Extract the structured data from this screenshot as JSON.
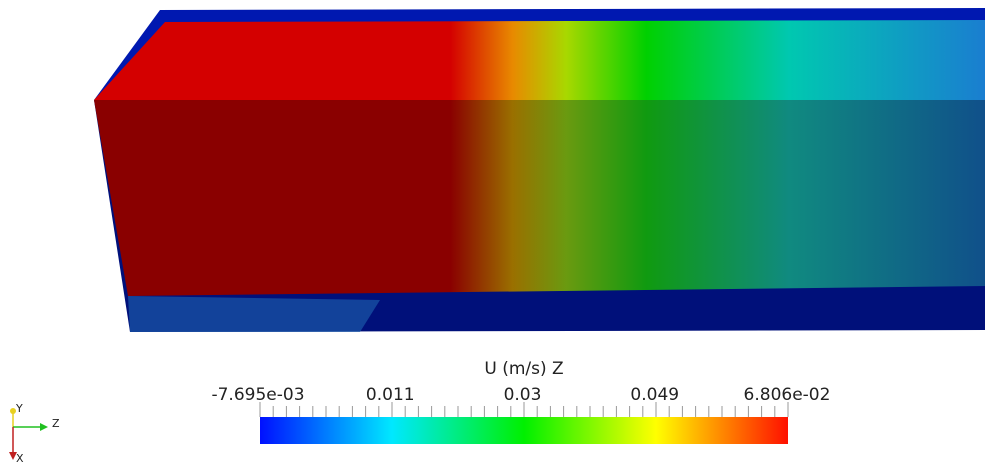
{
  "colorbar": {
    "title": "U (m/s) Z",
    "labels": [
      "-7.695e-03",
      "0.011",
      "0.03",
      "0.049",
      "6.806e-02"
    ]
  },
  "orientation_axes": {
    "labels": [
      "Y",
      "Z",
      "X"
    ]
  }
}
